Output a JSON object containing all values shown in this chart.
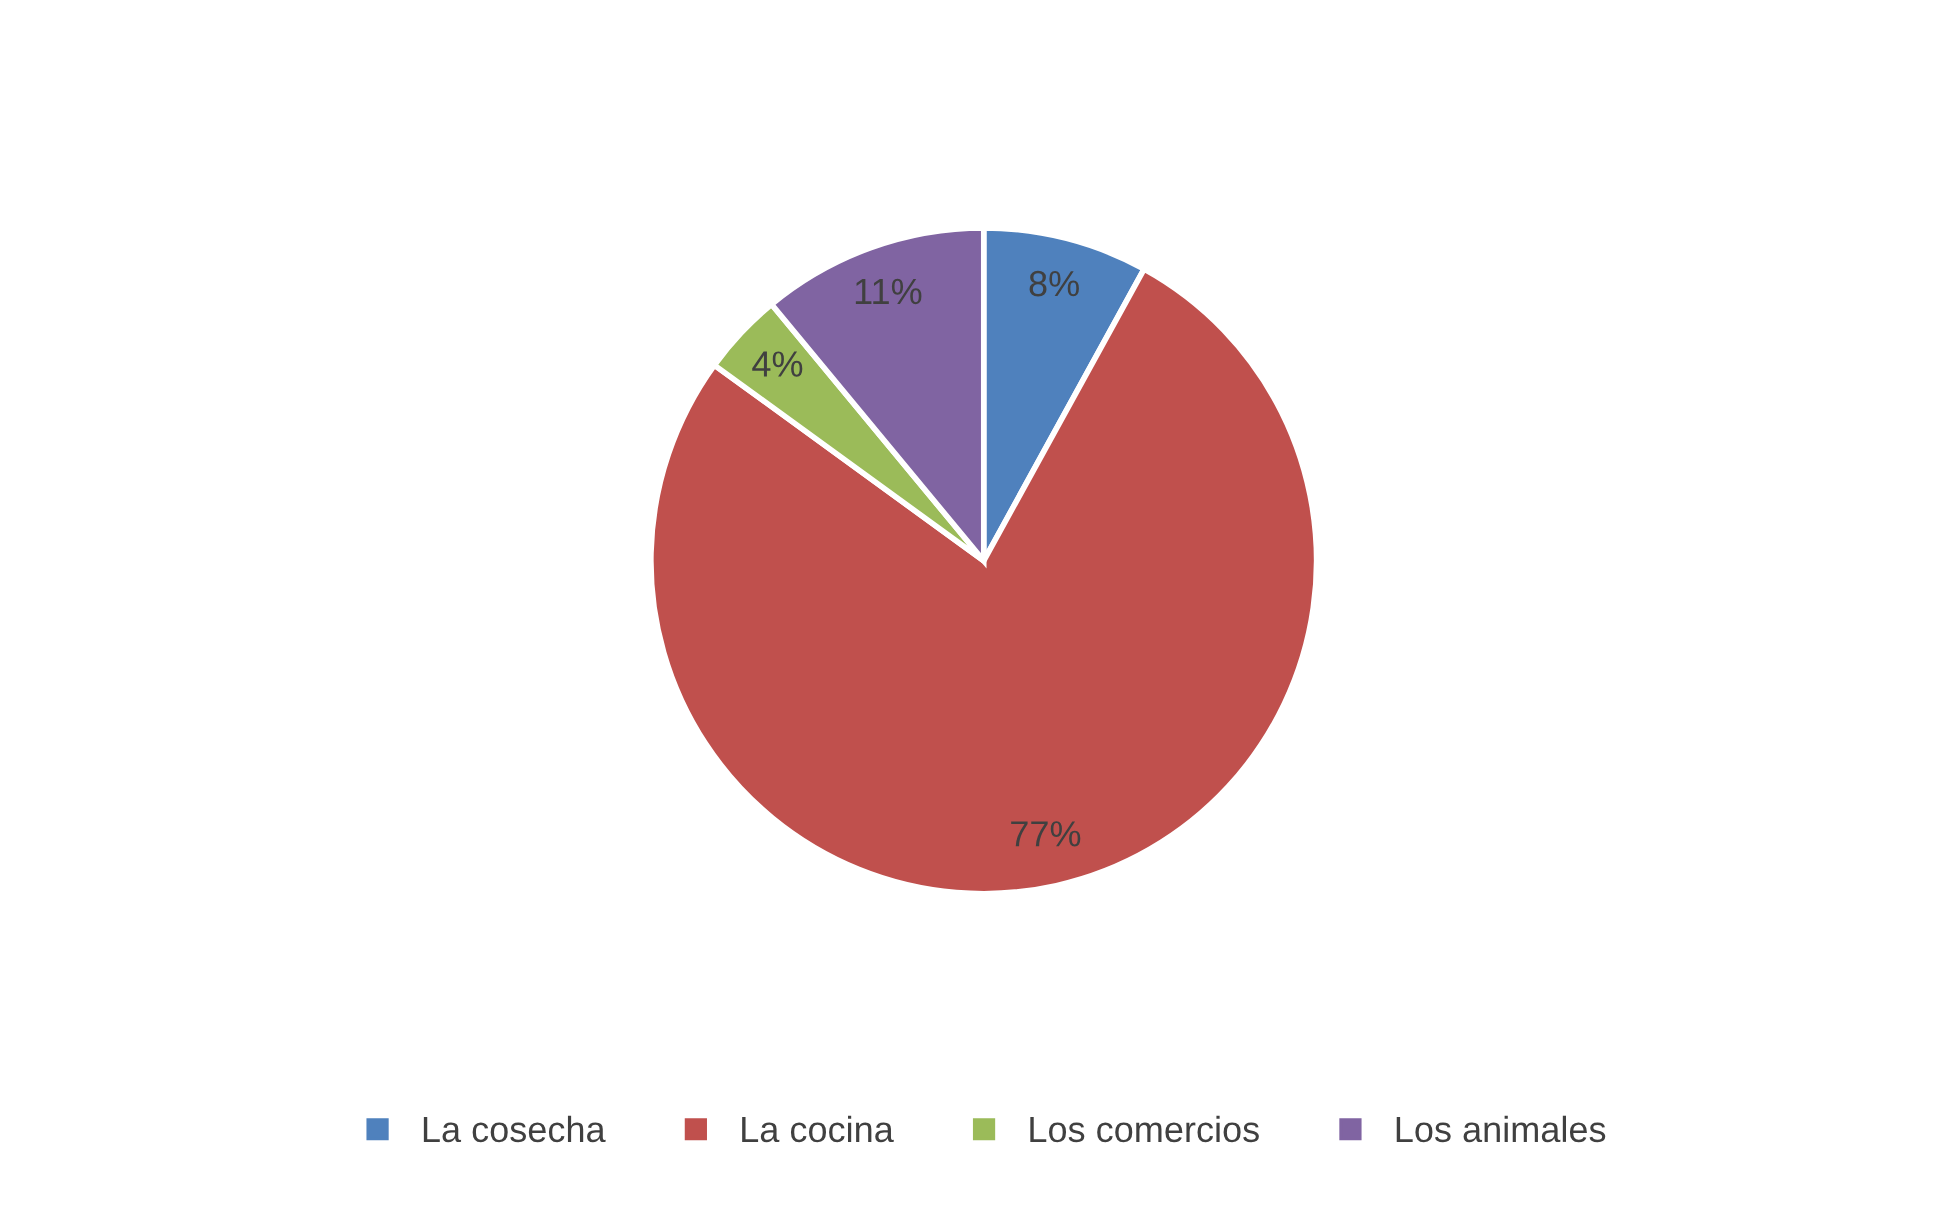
{
  "chart_data": {
    "type": "pie",
    "categories": [
      "La cosecha",
      "La cocina",
      "Los comercios",
      "Los animales"
    ],
    "values": [
      8,
      77,
      4,
      11
    ],
    "colors": [
      "#4f81bd",
      "#c0504d",
      "#9bbb59",
      "#8064a2"
    ],
    "value_labels": [
      "8%",
      "77%",
      "4%",
      "11%"
    ],
    "legend": "bottom"
  }
}
